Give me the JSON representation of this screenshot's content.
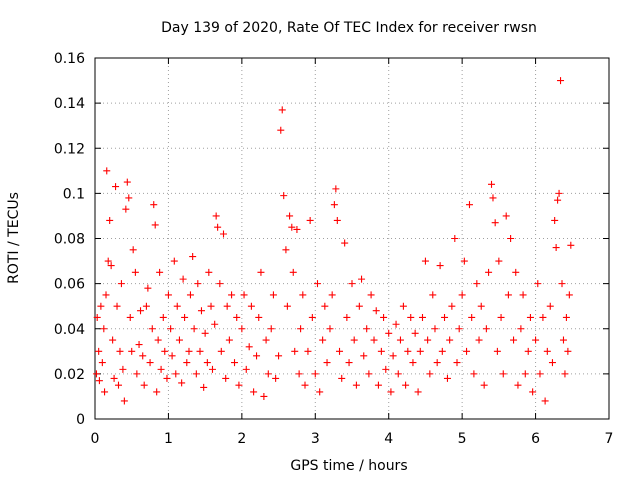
{
  "chart_data": {
    "type": "scatter",
    "title": "Day 139 of 2020, Rate Of TEC Index for receiver rwsn",
    "xlabel": "GPS time / hours",
    "ylabel": "ROTI / TECUs",
    "xlim": [
      0,
      7
    ],
    "ylim": [
      0,
      0.16
    ],
    "xticks": [
      0,
      1,
      2,
      3,
      4,
      5,
      6,
      7
    ],
    "yticks": [
      0,
      0.02,
      0.04,
      0.06,
      0.08,
      0.1,
      0.12,
      0.14,
      0.16
    ],
    "xtick_labels": [
      "0",
      "1",
      "2",
      "3",
      "4",
      "5",
      "6",
      "7"
    ],
    "ytick_labels": [
      "0",
      "0.02",
      "0.04",
      "0.06",
      "0.08",
      "0.1",
      "0.12",
      "0.14",
      "0.16"
    ],
    "grid": true,
    "marker": "+",
    "color": "#ff0000",
    "series": [
      {
        "name": "ROTI",
        "points": [
          [
            0.02,
            0.02
          ],
          [
            0.03,
            0.045
          ],
          [
            0.05,
            0.03
          ],
          [
            0.06,
            0.017
          ],
          [
            0.08,
            0.05
          ],
          [
            0.1,
            0.025
          ],
          [
            0.12,
            0.04
          ],
          [
            0.13,
            0.012
          ],
          [
            0.15,
            0.055
          ],
          [
            0.16,
            0.11
          ],
          [
            0.18,
            0.07
          ],
          [
            0.2,
            0.088
          ],
          [
            0.22,
            0.068
          ],
          [
            0.24,
            0.035
          ],
          [
            0.26,
            0.018
          ],
          [
            0.28,
            0.103
          ],
          [
            0.3,
            0.05
          ],
          [
            0.32,
            0.015
          ],
          [
            0.34,
            0.03
          ],
          [
            0.36,
            0.06
          ],
          [
            0.38,
            0.022
          ],
          [
            0.4,
            0.008
          ],
          [
            0.42,
            0.093
          ],
          [
            0.44,
            0.105
          ],
          [
            0.46,
            0.098
          ],
          [
            0.48,
            0.045
          ],
          [
            0.5,
            0.03
          ],
          [
            0.52,
            0.075
          ],
          [
            0.55,
            0.065
          ],
          [
            0.57,
            0.02
          ],
          [
            0.6,
            0.033
          ],
          [
            0.62,
            0.048
          ],
          [
            0.65,
            0.028
          ],
          [
            0.67,
            0.015
          ],
          [
            0.7,
            0.05
          ],
          [
            0.72,
            0.058
          ],
          [
            0.75,
            0.025
          ],
          [
            0.78,
            0.04
          ],
          [
            0.8,
            0.095
          ],
          [
            0.82,
            0.086
          ],
          [
            0.84,
            0.012
          ],
          [
            0.86,
            0.035
          ],
          [
            0.88,
            0.065
          ],
          [
            0.9,
            0.022
          ],
          [
            0.93,
            0.045
          ],
          [
            0.95,
            0.03
          ],
          [
            0.98,
            0.018
          ],
          [
            1.0,
            0.055
          ],
          [
            1.03,
            0.04
          ],
          [
            1.05,
            0.028
          ],
          [
            1.08,
            0.07
          ],
          [
            1.1,
            0.02
          ],
          [
            1.12,
            0.05
          ],
          [
            1.15,
            0.035
          ],
          [
            1.18,
            0.016
          ],
          [
            1.2,
            0.062
          ],
          [
            1.22,
            0.045
          ],
          [
            1.25,
            0.025
          ],
          [
            1.28,
            0.03
          ],
          [
            1.3,
            0.055
          ],
          [
            1.33,
            0.072
          ],
          [
            1.35,
            0.04
          ],
          [
            1.38,
            0.02
          ],
          [
            1.4,
            0.06
          ],
          [
            1.43,
            0.03
          ],
          [
            1.45,
            0.048
          ],
          [
            1.48,
            0.014
          ],
          [
            1.5,
            0.038
          ],
          [
            1.53,
            0.025
          ],
          [
            1.55,
            0.065
          ],
          [
            1.58,
            0.05
          ],
          [
            1.6,
            0.022
          ],
          [
            1.63,
            0.042
          ],
          [
            1.65,
            0.09
          ],
          [
            1.67,
            0.085
          ],
          [
            1.7,
            0.06
          ],
          [
            1.72,
            0.03
          ],
          [
            1.75,
            0.082
          ],
          [
            1.78,
            0.018
          ],
          [
            1.8,
            0.05
          ],
          [
            1.83,
            0.035
          ],
          [
            1.86,
            0.055
          ],
          [
            1.9,
            0.025
          ],
          [
            1.93,
            0.045
          ],
          [
            1.96,
            0.015
          ],
          [
            2.0,
            0.04
          ],
          [
            2.03,
            0.055
          ],
          [
            2.06,
            0.022
          ],
          [
            2.1,
            0.032
          ],
          [
            2.13,
            0.05
          ],
          [
            2.16,
            0.012
          ],
          [
            2.2,
            0.028
          ],
          [
            2.23,
            0.045
          ],
          [
            2.26,
            0.065
          ],
          [
            2.3,
            0.01
          ],
          [
            2.33,
            0.035
          ],
          [
            2.36,
            0.02
          ],
          [
            2.4,
            0.04
          ],
          [
            2.43,
            0.055
          ],
          [
            2.46,
            0.018
          ],
          [
            2.5,
            0.028
          ],
          [
            2.53,
            0.128
          ],
          [
            2.55,
            0.137
          ],
          [
            2.57,
            0.099
          ],
          [
            2.6,
            0.075
          ],
          [
            2.62,
            0.05
          ],
          [
            2.65,
            0.09
          ],
          [
            2.68,
            0.085
          ],
          [
            2.7,
            0.065
          ],
          [
            2.72,
            0.03
          ],
          [
            2.75,
            0.084
          ],
          [
            2.78,
            0.02
          ],
          [
            2.8,
            0.04
          ],
          [
            2.83,
            0.055
          ],
          [
            2.86,
            0.015
          ],
          [
            2.9,
            0.03
          ],
          [
            2.93,
            0.088
          ],
          [
            2.96,
            0.045
          ],
          [
            3.0,
            0.02
          ],
          [
            3.03,
            0.06
          ],
          [
            3.06,
            0.012
          ],
          [
            3.1,
            0.035
          ],
          [
            3.13,
            0.05
          ],
          [
            3.16,
            0.025
          ],
          [
            3.2,
            0.04
          ],
          [
            3.23,
            0.055
          ],
          [
            3.26,
            0.095
          ],
          [
            3.28,
            0.102
          ],
          [
            3.3,
            0.088
          ],
          [
            3.33,
            0.03
          ],
          [
            3.36,
            0.018
          ],
          [
            3.4,
            0.078
          ],
          [
            3.43,
            0.045
          ],
          [
            3.46,
            0.025
          ],
          [
            3.5,
            0.06
          ],
          [
            3.53,
            0.035
          ],
          [
            3.56,
            0.015
          ],
          [
            3.6,
            0.05
          ],
          [
            3.63,
            0.062
          ],
          [
            3.66,
            0.028
          ],
          [
            3.7,
            0.04
          ],
          [
            3.73,
            0.02
          ],
          [
            3.76,
            0.055
          ],
          [
            3.8,
            0.035
          ],
          [
            3.83,
            0.048
          ],
          [
            3.86,
            0.015
          ],
          [
            3.9,
            0.03
          ],
          [
            3.93,
            0.045
          ],
          [
            3.96,
            0.022
          ],
          [
            4.0,
            0.038
          ],
          [
            4.03,
            0.012
          ],
          [
            4.06,
            0.028
          ],
          [
            4.1,
            0.042
          ],
          [
            4.13,
            0.02
          ],
          [
            4.16,
            0.035
          ],
          [
            4.2,
            0.05
          ],
          [
            4.23,
            0.015
          ],
          [
            4.26,
            0.03
          ],
          [
            4.3,
            0.045
          ],
          [
            4.33,
            0.025
          ],
          [
            4.36,
            0.038
          ],
          [
            4.4,
            0.012
          ],
          [
            4.43,
            0.03
          ],
          [
            4.46,
            0.045
          ],
          [
            4.5,
            0.07
          ],
          [
            4.53,
            0.035
          ],
          [
            4.56,
            0.02
          ],
          [
            4.6,
            0.055
          ],
          [
            4.63,
            0.04
          ],
          [
            4.66,
            0.025
          ],
          [
            4.7,
            0.068
          ],
          [
            4.73,
            0.03
          ],
          [
            4.76,
            0.045
          ],
          [
            4.8,
            0.018
          ],
          [
            4.83,
            0.035
          ],
          [
            4.86,
            0.05
          ],
          [
            4.9,
            0.08
          ],
          [
            4.93,
            0.025
          ],
          [
            4.96,
            0.04
          ],
          [
            5.0,
            0.055
          ],
          [
            5.03,
            0.07
          ],
          [
            5.06,
            0.03
          ],
          [
            5.1,
            0.095
          ],
          [
            5.13,
            0.045
          ],
          [
            5.16,
            0.02
          ],
          [
            5.2,
            0.06
          ],
          [
            5.23,
            0.035
          ],
          [
            5.26,
            0.05
          ],
          [
            5.3,
            0.015
          ],
          [
            5.33,
            0.04
          ],
          [
            5.36,
            0.065
          ],
          [
            5.4,
            0.104
          ],
          [
            5.42,
            0.098
          ],
          [
            5.45,
            0.087
          ],
          [
            5.48,
            0.03
          ],
          [
            5.5,
            0.07
          ],
          [
            5.53,
            0.045
          ],
          [
            5.56,
            0.02
          ],
          [
            5.6,
            0.09
          ],
          [
            5.63,
            0.055
          ],
          [
            5.66,
            0.08
          ],
          [
            5.7,
            0.035
          ],
          [
            5.73,
            0.065
          ],
          [
            5.76,
            0.015
          ],
          [
            5.8,
            0.04
          ],
          [
            5.83,
            0.055
          ],
          [
            5.86,
            0.02
          ],
          [
            5.9,
            0.03
          ],
          [
            5.93,
            0.045
          ],
          [
            5.96,
            0.012
          ],
          [
            6.0,
            0.035
          ],
          [
            6.03,
            0.06
          ],
          [
            6.06,
            0.02
          ],
          [
            6.1,
            0.045
          ],
          [
            6.13,
            0.008
          ],
          [
            6.16,
            0.03
          ],
          [
            6.2,
            0.05
          ],
          [
            6.23,
            0.025
          ],
          [
            6.26,
            0.088
          ],
          [
            6.28,
            0.076
          ],
          [
            6.3,
            0.097
          ],
          [
            6.32,
            0.1
          ],
          [
            6.34,
            0.15
          ],
          [
            6.36,
            0.06
          ],
          [
            6.38,
            0.035
          ],
          [
            6.4,
            0.02
          ],
          [
            6.42,
            0.045
          ],
          [
            6.44,
            0.03
          ],
          [
            6.46,
            0.055
          ],
          [
            6.48,
            0.077
          ]
        ]
      }
    ]
  }
}
